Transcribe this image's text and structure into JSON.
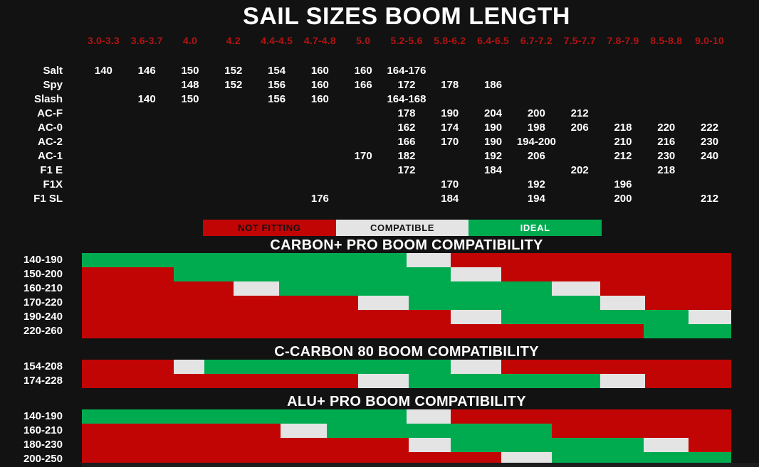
{
  "page_title": "SAIL SIZES BOOM LENGTH",
  "colors": {
    "background": "#121212",
    "not_fitting": "#c10505",
    "compatible": "#e4e4e4",
    "ideal": "#00ab4f",
    "header_text": "#b51212",
    "text": "#ffffff",
    "legend_dark_text": "#121212"
  },
  "chart_data": {
    "type": "table",
    "title": "SAIL SIZES BOOM LENGTH",
    "columns": [
      "3.0-3.3",
      "3.6-3.7",
      "4.0",
      "4.2",
      "4.4-4.5",
      "4.7-4.8",
      "5.0",
      "5.2-5.6",
      "5.8-6.2",
      "6.4-6.5",
      "6.7-7.2",
      "7.5-7.7",
      "7.8-7.9",
      "8.5-8.8",
      "9.0-10"
    ],
    "rows": [
      {
        "model": "Salt",
        "values": [
          "140",
          "146",
          "150",
          "152",
          "154",
          "160",
          "160",
          "164-176",
          "",
          "",
          "",
          "",
          "",
          "",
          ""
        ]
      },
      {
        "model": "Spy",
        "values": [
          "",
          "",
          "148",
          "152",
          "156",
          "160",
          "166",
          "172",
          "178",
          "186",
          "",
          "",
          "",
          "",
          ""
        ]
      },
      {
        "model": "Slash",
        "values": [
          "",
          "140",
          "150",
          "",
          "156",
          "160",
          "",
          "164-168",
          "",
          "",
          "",
          "",
          "",
          "",
          ""
        ]
      },
      {
        "model": "AC-F",
        "values": [
          "",
          "",
          "",
          "",
          "",
          "",
          "",
          "178",
          "190",
          "204",
          "200",
          "212",
          "",
          "",
          ""
        ]
      },
      {
        "model": "AC-0",
        "values": [
          "",
          "",
          "",
          "",
          "",
          "",
          "",
          "162",
          "174",
          "190",
          "198",
          "206",
          "218",
          "220",
          "222"
        ]
      },
      {
        "model": "AC-2",
        "values": [
          "",
          "",
          "",
          "",
          "",
          "",
          "",
          "166",
          "170",
          "190",
          "194-200",
          "",
          "210",
          "216",
          "230"
        ]
      },
      {
        "model": "AC-1",
        "values": [
          "",
          "",
          "",
          "",
          "",
          "",
          "170",
          "182",
          "",
          "192",
          "206",
          "",
          "212",
          "230",
          "240"
        ]
      },
      {
        "model": "F1 E",
        "values": [
          "",
          "",
          "",
          "",
          "",
          "",
          "",
          "172",
          "",
          "184",
          "",
          "202",
          "",
          "218",
          ""
        ]
      },
      {
        "model": "F1X",
        "values": [
          "",
          "",
          "",
          "",
          "",
          "",
          "",
          "",
          "170",
          "",
          "192",
          "",
          "196",
          "",
          ""
        ]
      },
      {
        "model": "F1 SL",
        "values": [
          "",
          "",
          "",
          "",
          "",
          "176",
          "",
          "",
          "184",
          "",
          "194",
          "",
          "200",
          "",
          "212"
        ]
      }
    ],
    "legend": [
      {
        "label": "NOT FITTING",
        "state": "not_fitting",
        "text": "dark"
      },
      {
        "label": "COMPATIBLE",
        "state": "compatible",
        "text": "dark"
      },
      {
        "label": "IDEAL",
        "state": "ideal",
        "text": "light"
      }
    ],
    "sections": [
      {
        "title": "CARBON+ PRO BOOM COMPATIBILITY",
        "rows": [
          {
            "range": "140-190",
            "segments": [
              {
                "state": "ideal",
                "to": 50.0
              },
              {
                "state": "compatible",
                "to": 56.8
              },
              {
                "state": "not_fitting",
                "to": 100
              }
            ]
          },
          {
            "range": "150-200",
            "segments": [
              {
                "state": "not_fitting",
                "to": 14.1
              },
              {
                "state": "ideal",
                "to": 56.8
              },
              {
                "state": "compatible",
                "to": 64.6
              },
              {
                "state": "not_fitting",
                "to": 100
              }
            ]
          },
          {
            "range": "160-210",
            "segments": [
              {
                "state": "not_fitting",
                "to": 23.4
              },
              {
                "state": "compatible",
                "to": 30.4
              },
              {
                "state": "ideal",
                "to": 72.4
              },
              {
                "state": "compatible",
                "to": 79.8
              },
              {
                "state": "not_fitting",
                "to": 100
              }
            ]
          },
          {
            "range": "170-220",
            "segments": [
              {
                "state": "not_fitting",
                "to": 42.5
              },
              {
                "state": "compatible",
                "to": 50.3
              },
              {
                "state": "ideal",
                "to": 79.8
              },
              {
                "state": "compatible",
                "to": 86.7
              },
              {
                "state": "not_fitting",
                "to": 100
              }
            ]
          },
          {
            "range": "190-240",
            "segments": [
              {
                "state": "not_fitting",
                "to": 56.8
              },
              {
                "state": "compatible",
                "to": 64.6
              },
              {
                "state": "ideal",
                "to": 93.4
              },
              {
                "state": "compatible",
                "to": 100
              }
            ]
          },
          {
            "range": "220-260",
            "segments": [
              {
                "state": "not_fitting",
                "to": 86.5
              },
              {
                "state": "ideal",
                "to": 100
              }
            ]
          }
        ]
      },
      {
        "title": "C-CARBON 80 BOOM COMPATIBILITY",
        "rows": [
          {
            "range": "154-208",
            "segments": [
              {
                "state": "not_fitting",
                "to": 14.1
              },
              {
                "state": "compatible",
                "to": 18.9
              },
              {
                "state": "ideal",
                "to": 56.8
              },
              {
                "state": "compatible",
                "to": 64.6
              },
              {
                "state": "not_fitting",
                "to": 100
              }
            ]
          },
          {
            "range": "174-228",
            "segments": [
              {
                "state": "not_fitting",
                "to": 42.5
              },
              {
                "state": "compatible",
                "to": 50.3
              },
              {
                "state": "ideal",
                "to": 79.8
              },
              {
                "state": "compatible",
                "to": 86.7
              },
              {
                "state": "not_fitting",
                "to": 100
              }
            ]
          }
        ]
      },
      {
        "title": "ALU+ PRO BOOM COMPATIBILITY",
        "rows": [
          {
            "range": "140-190",
            "segments": [
              {
                "state": "ideal",
                "to": 50.0
              },
              {
                "state": "compatible",
                "to": 56.8
              },
              {
                "state": "not_fitting",
                "to": 100
              }
            ]
          },
          {
            "range": "160-210",
            "segments": [
              {
                "state": "not_fitting",
                "to": 30.6
              },
              {
                "state": "compatible",
                "to": 37.7
              },
              {
                "state": "ideal",
                "to": 72.4
              },
              {
                "state": "not_fitting",
                "to": 100
              }
            ]
          },
          {
            "range": "180-230",
            "segments": [
              {
                "state": "not_fitting",
                "to": 50.3
              },
              {
                "state": "compatible",
                "to": 56.8
              },
              {
                "state": "ideal",
                "to": 86.5
              },
              {
                "state": "compatible",
                "to": 93.4
              },
              {
                "state": "not_fitting",
                "to": 100
              }
            ]
          },
          {
            "range": "200-250",
            "segments": [
              {
                "state": "not_fitting",
                "to": 64.6
              },
              {
                "state": "compatible",
                "to": 72.4
              },
              {
                "state": "ideal",
                "to": 100
              }
            ]
          }
        ]
      }
    ]
  }
}
